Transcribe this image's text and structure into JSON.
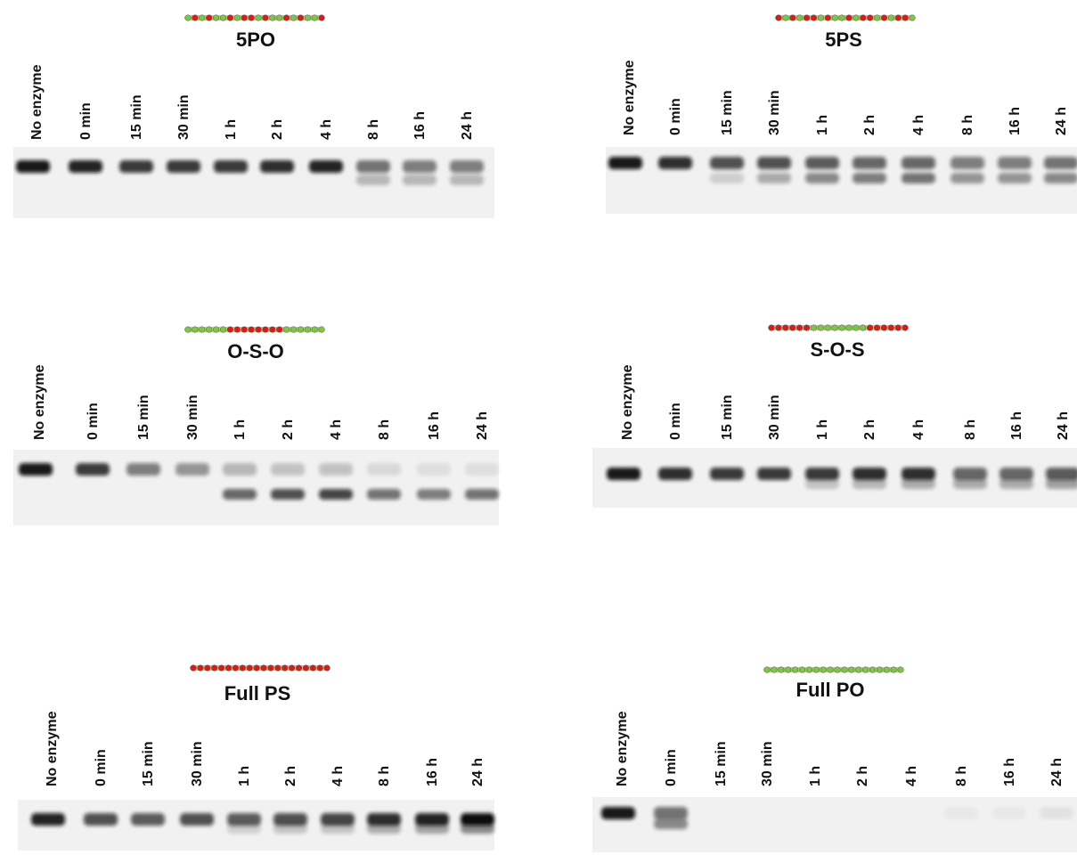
{
  "panels": [
    {
      "title": "5PO",
      "lanes": [
        "No enzyme",
        "0 min",
        "15 min",
        "30 min",
        "1 h",
        "2 h",
        "4 h",
        "8 h",
        "16 h",
        "24 h"
      ]
    },
    {
      "title": "5PS",
      "lanes": [
        "No enzyme",
        "0 min",
        "15 min",
        "30 min",
        "1 h",
        "2 h",
        "4 h",
        "8 h",
        "16 h",
        "24 h"
      ]
    },
    {
      "title": "O-S-O",
      "lanes": [
        "No enzyme",
        "0 min",
        "15 min",
        "30 min",
        "1 h",
        "2 h",
        "4 h",
        "8 h",
        "16 h",
        "24 h"
      ]
    },
    {
      "title": "S-O-S",
      "lanes": [
        "No enzyme",
        "0 min",
        "15 min",
        "30 min",
        "1 h",
        "2 h",
        "4 h",
        "8 h",
        "16 h",
        "24 h"
      ]
    },
    {
      "title": "Full PS",
      "lanes": [
        "No enzyme",
        "0 min",
        "15 min",
        "30 min",
        "1 h",
        "2 h",
        "4 h",
        "8 h",
        "16 h",
        "24 h"
      ]
    },
    {
      "title": "Full PO",
      "lanes": [
        "No enzyme",
        "0 min",
        "15 min",
        "30 min",
        "1 h",
        "2 h",
        "4 h",
        "8 h",
        "16 h",
        "24 h"
      ]
    }
  ]
}
